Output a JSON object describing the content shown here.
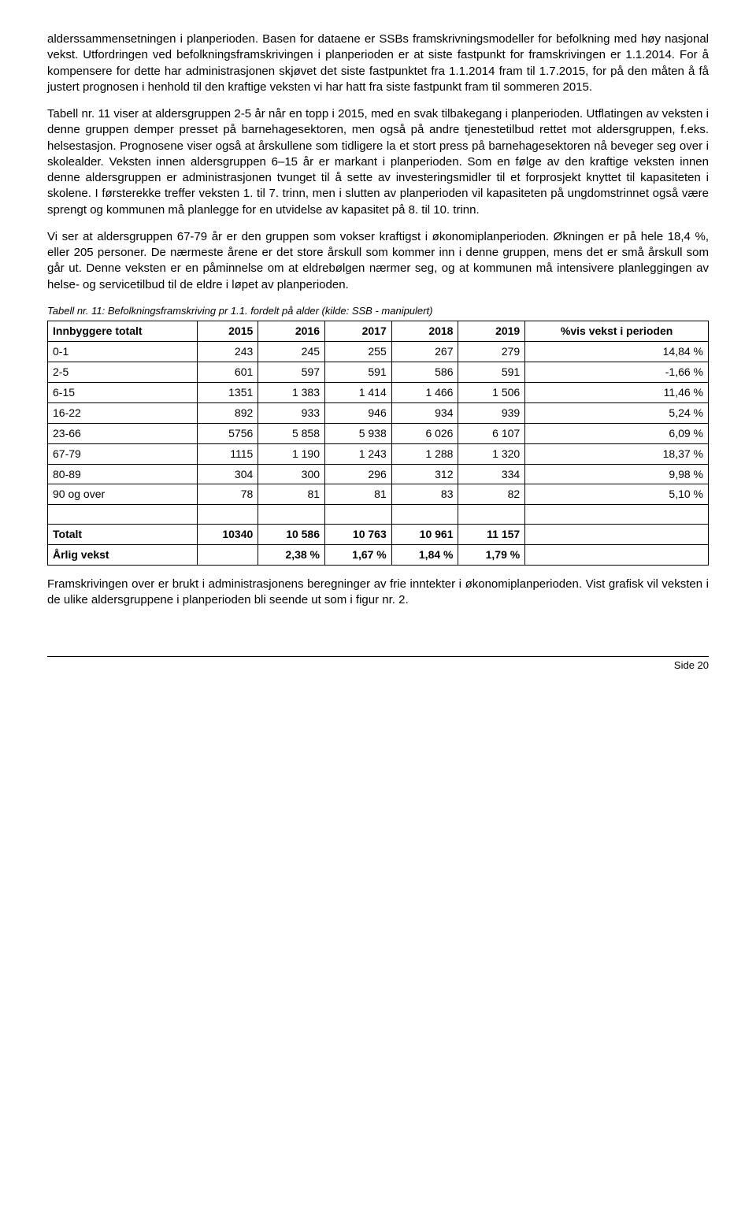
{
  "paragraphs": {
    "p1": "alderssammensetningen i planperioden. Basen for dataene er SSBs framskrivningsmodeller for befolkning med høy nasjonal vekst. Utfordringen ved befolkningsframskrivingen i planperioden er at siste fastpunkt for framskrivingen er 1.1.2014. For å kompensere for dette har administrasjonen skjøvet det siste fastpunktet fra 1.1.2014 fram til 1.7.2015, for på den måten å få justert prognosen i henhold til den kraftige veksten vi har hatt fra siste fastpunkt fram til sommeren 2015.",
    "p2": "Tabell nr. 11 viser at aldersgruppen 2-5 år når en topp i 2015, med en svak tilbakegang i planperioden. Utflatingen av veksten i denne gruppen demper presset på barnehagesektoren, men også på andre tjenestetilbud rettet mot aldersgruppen, f.eks. helsestasjon. Prognosene viser også at årskullene som tidligere la et stort press på barnehagesektoren nå beveger seg over i skolealder. Veksten innen aldersgruppen 6–15 år er markant i planperioden. Som en følge av den kraftige veksten innen denne aldersgruppen er administrasjonen tvunget til å sette av investeringsmidler til et forprosjekt knyttet til kapasiteten i skolene. I førsterekke treffer veksten 1. til 7. trinn, men i slutten av planperioden vil kapasiteten på ungdomstrinnet også være sprengt og kommunen må planlegge for en utvidelse av kapasitet på 8. til 10. trinn.",
    "p3": "Vi ser at aldersgruppen 67-79 år er den gruppen som vokser kraftigst i økonomiplanperioden. Økningen er på hele 18,4 %, eller 205 personer. De nærmeste årene er det store årskull som kommer inn i denne gruppen, mens det er små årskull som går ut. Denne veksten er en påminnelse om at eldrebølgen nærmer seg, og at kommunen må intensivere planleggingen av helse- og servicetilbud til de eldre i løpet av planperioden.",
    "p4": "Framskrivingen over er brukt i administrasjonens beregninger av frie inntekter i økonomiplanperioden. Vist grafisk vil veksten i de ulike aldersgruppene i planperioden bli seende ut som i figur nr. 2."
  },
  "table": {
    "caption": "Tabell nr. 11: Befolkningsframskriving pr 1.1. fordelt på alder (kilde: SSB - manipulert)",
    "headers": {
      "h0": "Innbyggere totalt",
      "h1": "2015",
      "h2": "2016",
      "h3": "2017",
      "h4": "2018",
      "h5": "2019",
      "h6": "%vis vekst i perioden"
    },
    "rows": [
      {
        "label": "0-1",
        "c1": "243",
        "c2": "245",
        "c3": "255",
        "c4": "267",
        "c5": "279",
        "c6": "14,84 %"
      },
      {
        "label": "2-5",
        "c1": "601",
        "c2": "597",
        "c3": "591",
        "c4": "586",
        "c5": "591",
        "c6": "-1,66 %"
      },
      {
        "label": "6-15",
        "c1": "1351",
        "c2": "1 383",
        "c3": "1 414",
        "c4": "1 466",
        "c5": "1 506",
        "c6": "11,46 %"
      },
      {
        "label": "16-22",
        "c1": "892",
        "c2": "933",
        "c3": "946",
        "c4": "934",
        "c5": "939",
        "c6": "5,24 %"
      },
      {
        "label": "23-66",
        "c1": "5756",
        "c2": "5 858",
        "c3": "5 938",
        "c4": "6 026",
        "c5": "6 107",
        "c6": "6,09 %"
      },
      {
        "label": "67-79",
        "c1": "1115",
        "c2": "1 190",
        "c3": "1 243",
        "c4": "1 288",
        "c5": "1 320",
        "c6": "18,37 %"
      },
      {
        "label": "80-89",
        "c1": "304",
        "c2": "300",
        "c3": "296",
        "c4": "312",
        "c5": "334",
        "c6": "9,98 %"
      },
      {
        "label": "90 og over",
        "c1": "78",
        "c2": "81",
        "c3": "81",
        "c4": "83",
        "c5": "82",
        "c6": "5,10 %"
      }
    ],
    "totalt": {
      "label": "Totalt",
      "c1": "10340",
      "c2": "10 586",
      "c3": "10 763",
      "c4": "10 961",
      "c5": "11 157",
      "c6": ""
    },
    "arlig": {
      "label": "Årlig vekst",
      "c1": "",
      "c2": "2,38 %",
      "c3": "1,67 %",
      "c4": "1,84 %",
      "c5": "1,79 %",
      "c6": ""
    }
  },
  "footer": "Side 20"
}
